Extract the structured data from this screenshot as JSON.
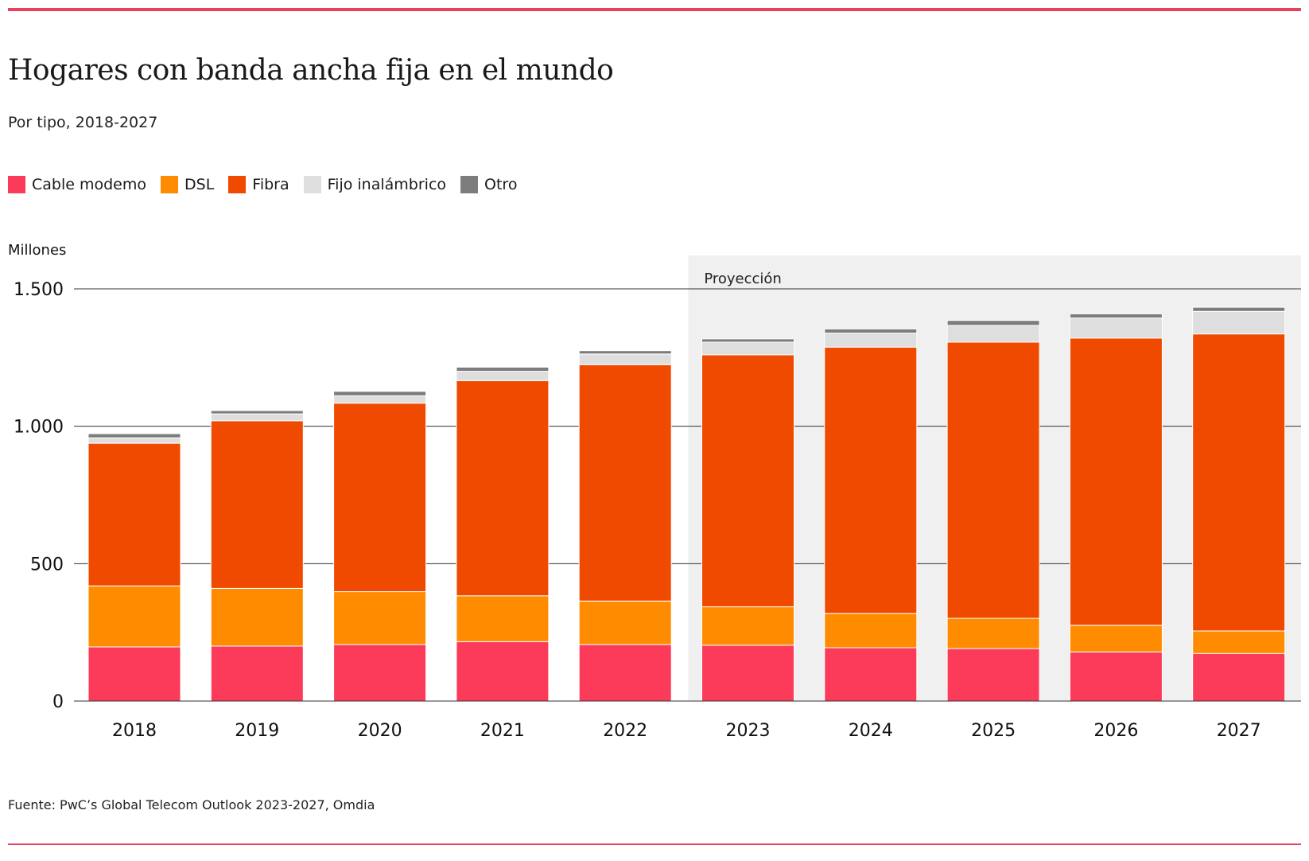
{
  "header": {
    "title": "Hogares con banda ancha fija en el mundo",
    "subtitle": "Por tipo, 2018-2027"
  },
  "footer": {
    "source": "Fuente: PwC’s Global Telecom Outlook 2023-2027, Omdia"
  },
  "colors": {
    "accent_rule": "#e8405f",
    "projection_bg": "#f0f0f0"
  },
  "chart_data": {
    "type": "bar",
    "stacked": true,
    "title": "Hogares con banda ancha fija en el mundo",
    "subtitle": "Por tipo, 2018-2027",
    "xlabel": "",
    "ylabel": "Millones",
    "ylim": [
      0,
      1500
    ],
    "yticks": [
      0,
      500,
      1000,
      1500
    ],
    "ytick_labels": [
      "0",
      "500",
      "1.000",
      "1.500"
    ],
    "grid": true,
    "legend_position": "top-left",
    "categories": [
      "2018",
      "2019",
      "2020",
      "2021",
      "2022",
      "2023",
      "2024",
      "2025",
      "2026",
      "2027"
    ],
    "projection": {
      "label": "Proyección",
      "from": "2023",
      "to": "2027"
    },
    "series": [
      {
        "name": "Cable modemo",
        "color": "#fc3a5a",
        "values": [
          197,
          200,
          206,
          216,
          206,
          203,
          194,
          191,
          179,
          173
        ]
      },
      {
        "name": "DSL",
        "color": "#fe8b00",
        "values": [
          222,
          210,
          192,
          167,
          158,
          140,
          125,
          110,
          97,
          82
        ]
      },
      {
        "name": "Fibra",
        "color": "#f04a00",
        "values": [
          519,
          610,
          686,
          783,
          860,
          917,
          969,
          1005,
          1045,
          1081
        ]
      },
      {
        "name": "Fijo inalámbrico",
        "color": "#dedede",
        "values": [
          20,
          25,
          27,
          34,
          39,
          46,
          51,
          61,
          73,
          82
        ]
      },
      {
        "name": "Otro",
        "color": "#7d7d7d",
        "values": [
          15,
          12,
          16,
          15,
          12,
          12,
          15,
          18,
          15,
          15
        ]
      }
    ]
  }
}
